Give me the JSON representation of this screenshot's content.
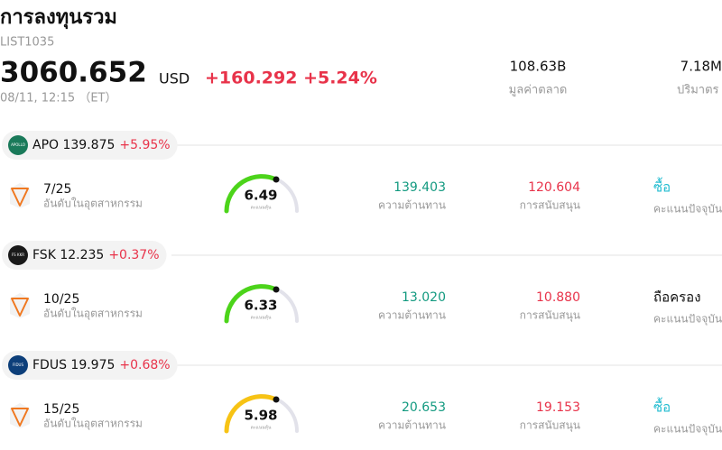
{
  "header": {
    "title": "การลงทุนรวม",
    "code": "LIST1035",
    "price": "3060.652",
    "currency": "USD",
    "change": "+160.292 +5.24%",
    "date": "08/11, 12:15 （ET）"
  },
  "stats": [
    {
      "value": "108.63B",
      "label": "มูลค่าตลาด"
    },
    {
      "value": "7.18M",
      "label": "ปริมาตร"
    }
  ],
  "items": [
    {
      "logo": "APOLLO",
      "logo_color": "#1a7a5a",
      "ticker": "APO 139.875",
      "change": "+5.95%",
      "rank": "7/25",
      "rank_label": "อันดับในอุตสาหกรรม",
      "score": "6.49",
      "score_label": "คะแนนหุ้น",
      "score_color": "#4cd41a",
      "resistance": "139.403",
      "resistance_label": "ความต้านทาน",
      "support": "120.604",
      "support_label": "การสนับสนุน",
      "rating": "ซื้อ",
      "rating_color": "#22bcd0",
      "rating_label": "คะแนนปัจจุบัน"
    },
    {
      "logo": "FS KKR",
      "logo_color": "#1a1a1a",
      "ticker": "FSK 12.235",
      "change": "+0.37%",
      "rank": "10/25",
      "rank_label": "อันดับในอุตสาหกรรม",
      "score": "6.33",
      "score_label": "คะแนนหุ้น",
      "score_color": "#4cd41a",
      "resistance": "13.020",
      "resistance_label": "ความต้านทาน",
      "support": "10.880",
      "support_label": "การสนับสนุน",
      "rating": "ถือครอง",
      "rating_color": "#111111",
      "rating_label": "คะแนนปัจจุบัน"
    },
    {
      "logo": "FIDUS",
      "logo_color": "#0d3f7a",
      "ticker": "FDUS 19.975",
      "change": "+0.68%",
      "rank": "15/25",
      "rank_label": "อันดับในอุตสาหกรรม",
      "score": "5.98",
      "score_label": "คะแนนหุ้น",
      "score_color": "#f7c314",
      "resistance": "20.653",
      "resistance_label": "ความต้านทาน",
      "support": "19.153",
      "support_label": "การสนับสนุน",
      "rating": "ซื้อ",
      "rating_color": "#22bcd0",
      "rating_label": "คะแนนปัจจุบัน"
    }
  ]
}
